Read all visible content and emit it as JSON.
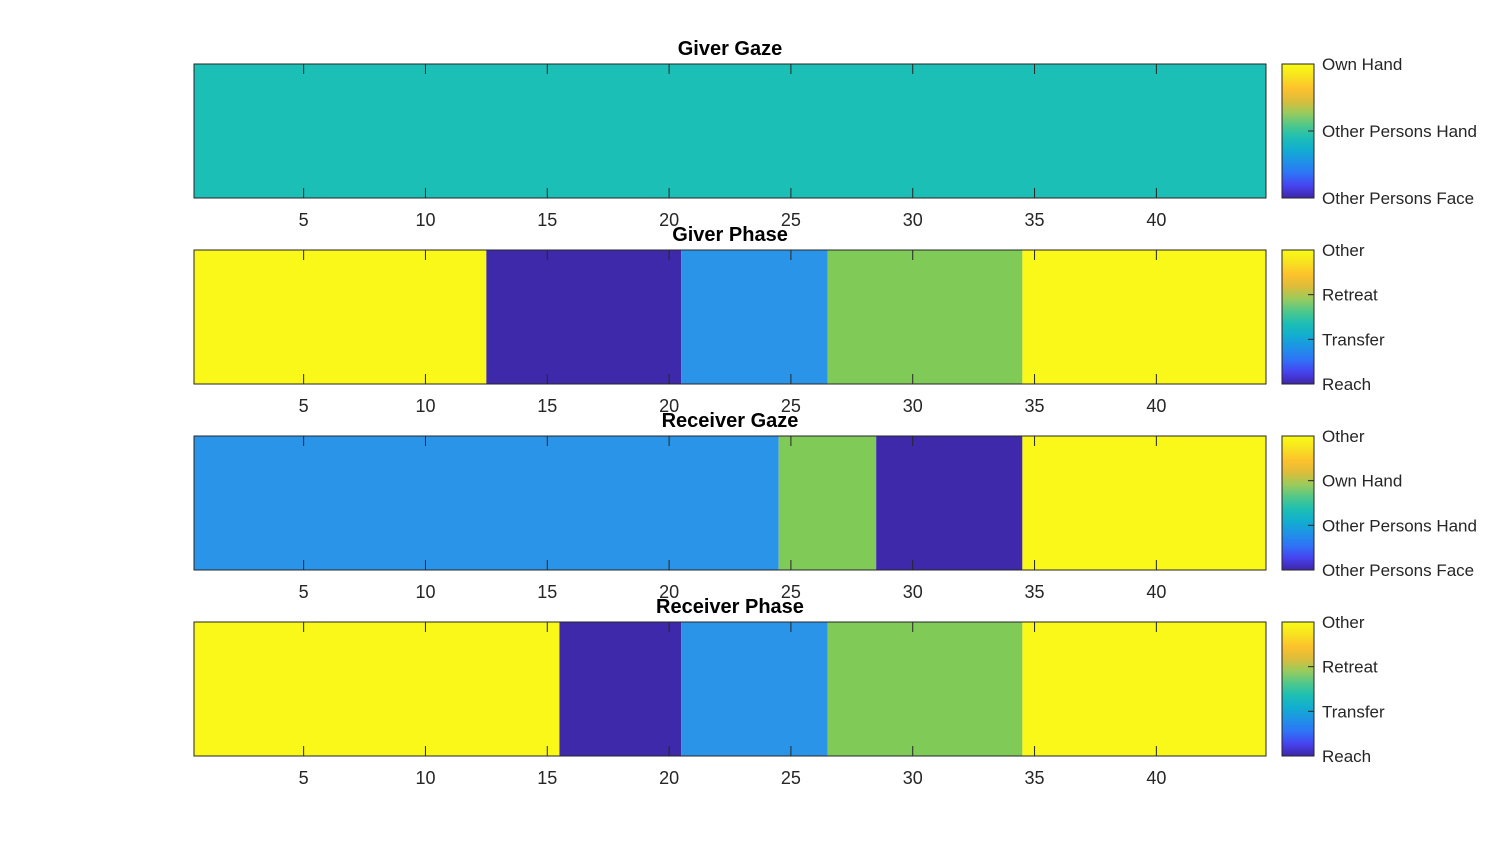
{
  "colors": {
    "yellow": "#f9f819",
    "cyan": "#1bbfb6",
    "blue": "#2a95e8",
    "green": "#80cb58",
    "indigo": "#3e29aa"
  },
  "colormap": [
    "#3e26a8",
    "#4743f0",
    "#2f73f7",
    "#1e92e6",
    "#12aed0",
    "#1ebfb3",
    "#51c889",
    "#9acb5c",
    "#ddbd3a",
    "#fdc22c",
    "#f7e21f",
    "#f9fb15"
  ],
  "chart_data": [
    {
      "type": "heatmap",
      "title": "Giver Gaze",
      "xlim": [
        0.5,
        44.5
      ],
      "xticks": [
        5,
        10,
        15,
        20,
        25,
        30,
        35,
        40
      ],
      "segments": [
        {
          "start": 1,
          "end": 44,
          "category": "Other Persons Hand",
          "color": "#1bbfb6"
        }
      ],
      "colorbar_labels": [
        "Own Hand",
        "Other Persons Hand",
        "Other Persons Face"
      ]
    },
    {
      "type": "heatmap",
      "title": "Giver Phase",
      "xlim": [
        0.5,
        44.5
      ],
      "xticks": [
        5,
        10,
        15,
        20,
        25,
        30,
        35,
        40
      ],
      "segments": [
        {
          "start": 1,
          "end": 12,
          "category": "Other",
          "color": "#f9f819"
        },
        {
          "start": 13,
          "end": 20,
          "category": "Reach",
          "color": "#3e29aa"
        },
        {
          "start": 21,
          "end": 26,
          "category": "Transfer",
          "color": "#2a95e8"
        },
        {
          "start": 27,
          "end": 34,
          "category": "Retreat",
          "color": "#80cb58"
        },
        {
          "start": 35,
          "end": 44,
          "category": "Other",
          "color": "#f9f819"
        }
      ],
      "colorbar_labels": [
        "Other",
        "Retreat",
        "Transfer",
        "Reach"
      ]
    },
    {
      "type": "heatmap",
      "title": "Receiver Gaze",
      "xlim": [
        0.5,
        44.5
      ],
      "xticks": [
        5,
        10,
        15,
        20,
        25,
        30,
        35,
        40
      ],
      "segments": [
        {
          "start": 1,
          "end": 24,
          "category": "Other Persons Hand",
          "color": "#2a95e8"
        },
        {
          "start": 25,
          "end": 28,
          "category": "Own Hand",
          "color": "#80cb58"
        },
        {
          "start": 29,
          "end": 34,
          "category": "Other Persons Face",
          "color": "#3e29aa"
        },
        {
          "start": 35,
          "end": 44,
          "category": "Other",
          "color": "#f9f819"
        }
      ],
      "colorbar_labels": [
        "Other",
        "Own Hand",
        "Other Persons Hand",
        "Other Persons Face"
      ]
    },
    {
      "type": "heatmap",
      "title": "Receiver Phase",
      "xlim": [
        0.5,
        44.5
      ],
      "xticks": [
        5,
        10,
        15,
        20,
        25,
        30,
        35,
        40
      ],
      "segments": [
        {
          "start": 1,
          "end": 15,
          "category": "Other",
          "color": "#f9f819"
        },
        {
          "start": 16,
          "end": 20,
          "category": "Reach",
          "color": "#3e29aa"
        },
        {
          "start": 21,
          "end": 26,
          "category": "Transfer",
          "color": "#2a95e8"
        },
        {
          "start": 27,
          "end": 34,
          "category": "Retreat",
          "color": "#80cb58"
        },
        {
          "start": 35,
          "end": 44,
          "category": "Other",
          "color": "#f9f819"
        }
      ],
      "colorbar_labels": [
        "Other",
        "Retreat",
        "Transfer",
        "Reach"
      ]
    }
  ]
}
